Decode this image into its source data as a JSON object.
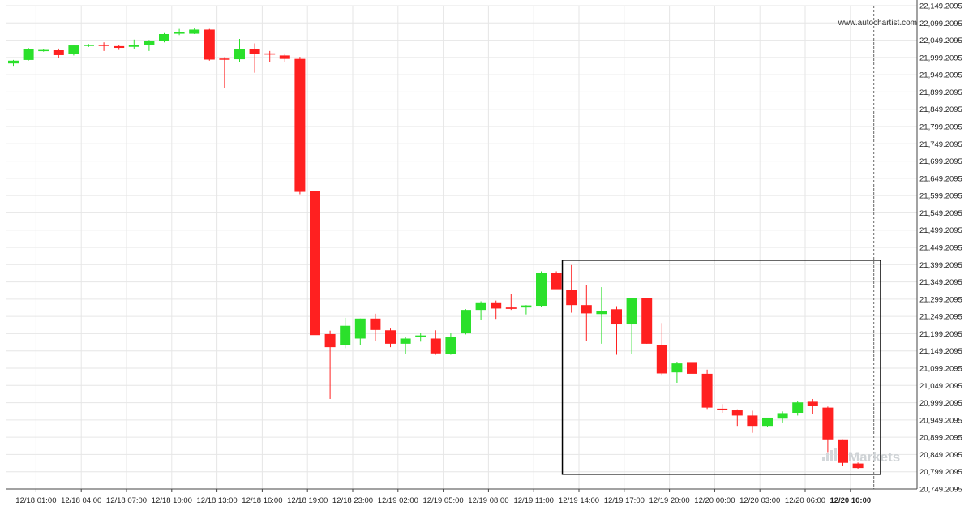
{
  "watermark": "www.autochartist.com",
  "brand_text": "Markets",
  "colors": {
    "bull": "#2be02b",
    "bear": "#ff2020",
    "grid": "#e6e6e6",
    "axis": "#444444",
    "box": "#000000",
    "cursor": "#666666"
  },
  "chart_data": {
    "type": "candlestick",
    "ylim": [
      20749.2095,
      22149.2095
    ],
    "y_ticks": [
      "22,149.2095",
      "22,099.2095",
      "22,049.2095",
      "21,999.2095",
      "21,949.2095",
      "21,899.2095",
      "21,849.2095",
      "21,799.2095",
      "21,749.2095",
      "21,699.2095",
      "21,649.2095",
      "21,599.2095",
      "21,549.2095",
      "21,499.2095",
      "21,449.2095",
      "21,399.2095",
      "21,349.2095",
      "21,299.2095",
      "21,249.2095",
      "21,199.2095",
      "21,149.2095",
      "21,099.2095",
      "21,049.2095",
      "20,999.2095",
      "20,949.2095",
      "20,899.2095",
      "20,849.2095",
      "20,799.2095",
      "20,749.2095"
    ],
    "x_ticks": [
      {
        "label": "12/18 01:00",
        "index": 1.5
      },
      {
        "label": "12/18 04:00",
        "index": 4.5
      },
      {
        "label": "12/18 07:00",
        "index": 7.5
      },
      {
        "label": "12/18 10:00",
        "index": 10.5
      },
      {
        "label": "12/18 13:00",
        "index": 13.5
      },
      {
        "label": "12/18 16:00",
        "index": 16.5
      },
      {
        "label": "12/18 19:00",
        "index": 19.5
      },
      {
        "label": "12/18 23:00",
        "index": 22.5
      },
      {
        "label": "12/19 02:00",
        "index": 25.5
      },
      {
        "label": "12/19 05:00",
        "index": 28.5
      },
      {
        "label": "12/19 08:00",
        "index": 31.5
      },
      {
        "label": "12/19 11:00",
        "index": 34.5
      },
      {
        "label": "12/19 14:00",
        "index": 37.5
      },
      {
        "label": "12/19 17:00",
        "index": 40.5
      },
      {
        "label": "12/19 20:00",
        "index": 43.5
      },
      {
        "label": "12/20 00:00",
        "index": 46.5
      },
      {
        "label": "12/20 03:00",
        "index": 49.5
      },
      {
        "label": "12/20 06:00",
        "index": 52.5
      },
      {
        "label": "12/20 10:00",
        "index": 55.5,
        "bold": true
      }
    ],
    "candles": [
      {
        "o": 21982,
        "h": 21992,
        "l": 21975,
        "c": 21990
      },
      {
        "o": 21992,
        "h": 22027,
        "l": 21990,
        "c": 22023
      },
      {
        "o": 22020,
        "h": 22024,
        "l": 22016,
        "c": 22021
      },
      {
        "o": 22020,
        "h": 22025,
        "l": 21998,
        "c": 22006
      },
      {
        "o": 22010,
        "h": 22036,
        "l": 22005,
        "c": 22034
      },
      {
        "o": 22033,
        "h": 22038,
        "l": 22030,
        "c": 22036
      },
      {
        "o": 22036,
        "h": 22043,
        "l": 22018,
        "c": 22033
      },
      {
        "o": 22032,
        "h": 22035,
        "l": 22021,
        "c": 22027
      },
      {
        "o": 22030,
        "h": 22051,
        "l": 22024,
        "c": 22035
      },
      {
        "o": 22035,
        "h": 22050,
        "l": 22018,
        "c": 22048
      },
      {
        "o": 22048,
        "h": 22070,
        "l": 22043,
        "c": 22067
      },
      {
        "o": 22068,
        "h": 22082,
        "l": 22064,
        "c": 22072
      },
      {
        "o": 22068,
        "h": 22084,
        "l": 22067,
        "c": 22080
      },
      {
        "o": 22080,
        "h": 22082,
        "l": 21990,
        "c": 21993
      },
      {
        "o": 21996,
        "h": 22000,
        "l": 21910,
        "c": 21995
      },
      {
        "o": 21994,
        "h": 22053,
        "l": 21985,
        "c": 22024
      },
      {
        "o": 22024,
        "h": 22040,
        "l": 21955,
        "c": 22010
      },
      {
        "o": 22011,
        "h": 22018,
        "l": 21985,
        "c": 22008
      },
      {
        "o": 22005,
        "h": 22011,
        "l": 21985,
        "c": 21995
      },
      {
        "o": 21995,
        "h": 22001,
        "l": 21603,
        "c": 21610
      },
      {
        "o": 21612,
        "h": 21625,
        "l": 21136,
        "c": 21195
      },
      {
        "o": 21198,
        "h": 21208,
        "l": 21010,
        "c": 21160
      },
      {
        "o": 21165,
        "h": 21245,
        "l": 21157,
        "c": 21222
      },
      {
        "o": 21185,
        "h": 21243,
        "l": 21167,
        "c": 21243
      },
      {
        "o": 21243,
        "h": 21257,
        "l": 21177,
        "c": 21210
      },
      {
        "o": 21209,
        "h": 21214,
        "l": 21160,
        "c": 21170
      },
      {
        "o": 21170,
        "h": 21190,
        "l": 21140,
        "c": 21185
      },
      {
        "o": 21190,
        "h": 21202,
        "l": 21176,
        "c": 21194
      },
      {
        "o": 21185,
        "h": 21209,
        "l": 21138,
        "c": 21142
      },
      {
        "o": 21140,
        "h": 21200,
        "l": 21138,
        "c": 21190
      },
      {
        "o": 21200,
        "h": 21270,
        "l": 21197,
        "c": 21268
      },
      {
        "o": 21268,
        "h": 21293,
        "l": 21239,
        "c": 21290
      },
      {
        "o": 21290,
        "h": 21295,
        "l": 21242,
        "c": 21272
      },
      {
        "o": 21275,
        "h": 21315,
        "l": 21268,
        "c": 21271
      },
      {
        "o": 21275,
        "h": 21282,
        "l": 21255,
        "c": 21281
      },
      {
        "o": 21280,
        "h": 21380,
        "l": 21276,
        "c": 21376
      },
      {
        "o": 21375,
        "h": 21380,
        "l": 21330,
        "c": 21328
      },
      {
        "o": 21325,
        "h": 21398,
        "l": 21260,
        "c": 21282
      },
      {
        "o": 21282,
        "h": 21341,
        "l": 21177,
        "c": 21258
      },
      {
        "o": 21256,
        "h": 21334,
        "l": 21170,
        "c": 21266
      },
      {
        "o": 21270,
        "h": 21279,
        "l": 21138,
        "c": 21226
      },
      {
        "o": 21226,
        "h": 21302,
        "l": 21140,
        "c": 21302
      },
      {
        "o": 21302,
        "h": 21302,
        "l": 21170,
        "c": 21170
      },
      {
        "o": 21167,
        "h": 21230,
        "l": 21080,
        "c": 21084
      },
      {
        "o": 21087,
        "h": 21118,
        "l": 21057,
        "c": 21113
      },
      {
        "o": 21117,
        "h": 21122,
        "l": 21080,
        "c": 21083
      },
      {
        "o": 21083,
        "h": 21095,
        "l": 20981,
        "c": 20985
      },
      {
        "o": 20982,
        "h": 20995,
        "l": 20970,
        "c": 20978
      },
      {
        "o": 20977,
        "h": 20980,
        "l": 20932,
        "c": 20962
      },
      {
        "o": 20962,
        "h": 20976,
        "l": 20912,
        "c": 20932
      },
      {
        "o": 20932,
        "h": 20956,
        "l": 20928,
        "c": 20956
      },
      {
        "o": 20953,
        "h": 20974,
        "l": 20942,
        "c": 20969
      },
      {
        "o": 20970,
        "h": 21003,
        "l": 20962,
        "c": 21000
      },
      {
        "o": 21002,
        "h": 21010,
        "l": 20967,
        "c": 20991
      },
      {
        "o": 20985,
        "h": 20988,
        "l": 20856,
        "c": 20893
      },
      {
        "o": 20893,
        "h": 20893,
        "l": 20816,
        "c": 20825
      },
      {
        "o": 20823,
        "h": 20826,
        "l": 20808,
        "c": 20810
      }
    ],
    "annotation": {
      "type": "rectangle",
      "from_index": 36.4,
      "to_index": 57.5,
      "y_top": 21412,
      "y_bottom": 20792
    },
    "cursor_index": 57
  }
}
